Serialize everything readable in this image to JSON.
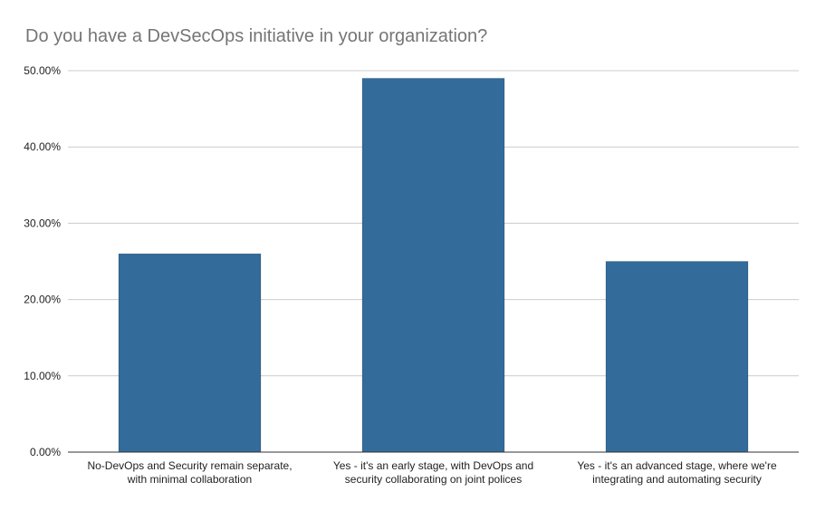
{
  "chart_data": {
    "type": "bar",
    "title": "Do you have a DevSecOps initiative in your organization?",
    "xlabel": "",
    "ylabel": "",
    "categories": [
      [
        "No-DevOps and Security remain separate,",
        "with minimal collaboration"
      ],
      [
        "Yes - it's an early stage, with DevOps and",
        "security collaborating on joint polices"
      ],
      [
        "Yes - it's an advanced stage, where we're",
        "integrating and automating security"
      ]
    ],
    "values": [
      26,
      49,
      25
    ],
    "ylim": [
      0,
      50
    ],
    "yticks": [
      0,
      10,
      20,
      30,
      40,
      50
    ],
    "ytick_labels": [
      "0.00%",
      "10.00%",
      "20.00%",
      "30.00%",
      "40.00%",
      "50.00%"
    ],
    "grid": true,
    "legend": "none",
    "colors": {
      "bar": "#336b9a",
      "grid": "#cccccc",
      "axis": "#333333",
      "title": "#757575"
    }
  }
}
